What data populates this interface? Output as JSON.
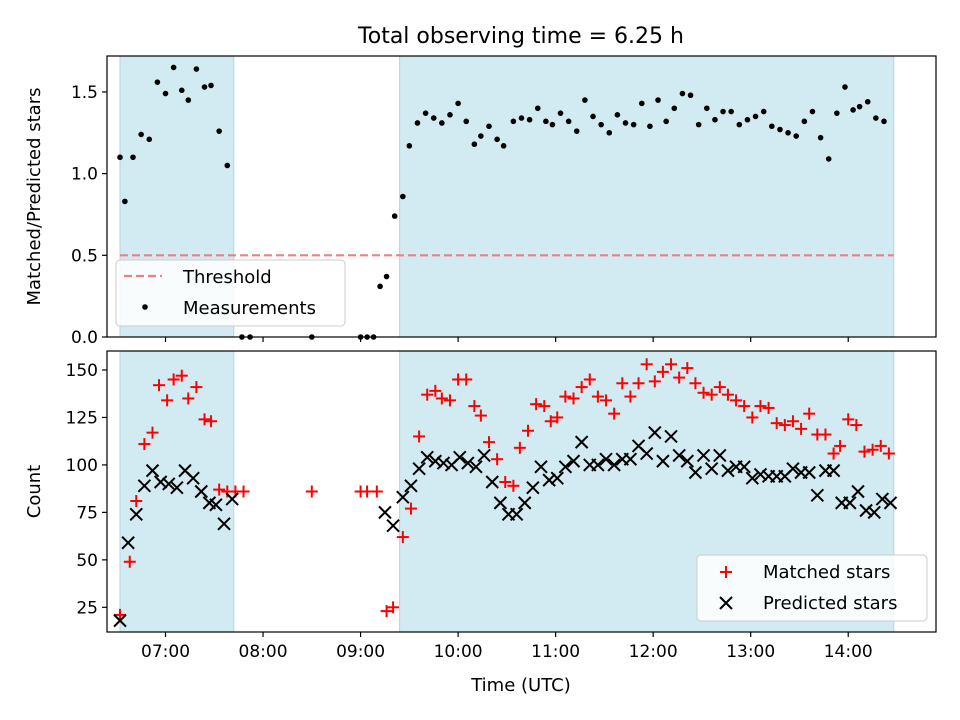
{
  "title": "Total observing time = 6.25 h",
  "colors": {
    "observing_band": "#add8e6",
    "threshold": "#f08080",
    "measurement": "#000000",
    "matched": "#ff0000",
    "predicted": "#000000"
  },
  "chart_data": [
    {
      "type": "scatter",
      "ylabel": "Matched/Predicted stars",
      "xlim": [
        "06:24",
        "14:54"
      ],
      "ylim": [
        0,
        1.72
      ],
      "yticks": [
        "0.0",
        "0.5",
        "1.0",
        "1.5"
      ],
      "observing_windows": [
        [
          "06:32",
          "07:42"
        ],
        [
          "09:24",
          "14:28"
        ]
      ],
      "threshold": {
        "name": "Threshold",
        "y": 0.5,
        "x_range": [
          "06:32",
          "14:28"
        ]
      },
      "legend": {
        "position": "lower-left",
        "entries": [
          "Threshold",
          "Measurements"
        ]
      },
      "series": [
        {
          "name": "Measurements",
          "marker": "dot",
          "points": [
            [
              "06:32",
              1.1
            ],
            [
              "06:35",
              0.83
            ],
            [
              "06:40",
              1.1
            ],
            [
              "06:45",
              1.24
            ],
            [
              "06:50",
              1.21
            ],
            [
              "06:55",
              1.56
            ],
            [
              "07:00",
              1.49
            ],
            [
              "07:05",
              1.65
            ],
            [
              "07:10",
              1.51
            ],
            [
              "07:14",
              1.45
            ],
            [
              "07:19",
              1.64
            ],
            [
              "07:24",
              1.53
            ],
            [
              "07:28",
              1.54
            ],
            [
              "07:33",
              1.26
            ],
            [
              "07:38",
              1.05
            ],
            [
              "07:47",
              0.0
            ],
            [
              "07:52",
              0.0
            ],
            [
              "08:30",
              0.0
            ],
            [
              "09:00",
              0.0
            ],
            [
              "09:04",
              0.0
            ],
            [
              "09:08",
              0.0
            ],
            [
              "09:12",
              0.31
            ],
            [
              "09:16",
              0.37
            ],
            [
              "09:21",
              0.74
            ],
            [
              "09:26",
              0.86
            ],
            [
              "09:30",
              1.17
            ],
            [
              "09:35",
              1.31
            ],
            [
              "09:40",
              1.37
            ],
            [
              "09:45",
              1.34
            ],
            [
              "09:50",
              1.31
            ],
            [
              "09:55",
              1.36
            ],
            [
              "10:00",
              1.43
            ],
            [
              "10:05",
              1.32
            ],
            [
              "10:10",
              1.18
            ],
            [
              "10:14",
              1.23
            ],
            [
              "10:19",
              1.29
            ],
            [
              "10:24",
              1.21
            ],
            [
              "10:28",
              1.17
            ],
            [
              "10:34",
              1.32
            ],
            [
              "10:39",
              1.34
            ],
            [
              "10:44",
              1.33
            ],
            [
              "10:49",
              1.4
            ],
            [
              "10:54",
              1.32
            ],
            [
              "10:58",
              1.3
            ],
            [
              "11:03",
              1.37
            ],
            [
              "11:08",
              1.32
            ],
            [
              "11:13",
              1.26
            ],
            [
              "11:18",
              1.45
            ],
            [
              "11:23",
              1.35
            ],
            [
              "11:28",
              1.3
            ],
            [
              "11:33",
              1.25
            ],
            [
              "11:38",
              1.36
            ],
            [
              "11:43",
              1.31
            ],
            [
              "11:48",
              1.3
            ],
            [
              "11:53",
              1.43
            ],
            [
              "11:58",
              1.29
            ],
            [
              "12:03",
              1.45
            ],
            [
              "12:08",
              1.32
            ],
            [
              "12:13",
              1.4
            ],
            [
              "12:18",
              1.49
            ],
            [
              "12:23",
              1.48
            ],
            [
              "12:28",
              1.3
            ],
            [
              "12:33",
              1.4
            ],
            [
              "12:38",
              1.33
            ],
            [
              "12:43",
              1.38
            ],
            [
              "12:48",
              1.38
            ],
            [
              "12:53",
              1.3
            ],
            [
              "12:58",
              1.33
            ],
            [
              "13:03",
              1.35
            ],
            [
              "13:08",
              1.38
            ],
            [
              "13:13",
              1.29
            ],
            [
              "13:18",
              1.27
            ],
            [
              "13:23",
              1.25
            ],
            [
              "13:28",
              1.23
            ],
            [
              "13:33",
              1.32
            ],
            [
              "13:38",
              1.38
            ],
            [
              "13:43",
              1.22
            ],
            [
              "13:48",
              1.09
            ],
            [
              "13:53",
              1.37
            ],
            [
              "13:58",
              1.53
            ],
            [
              "14:03",
              1.39
            ],
            [
              "14:07",
              1.41
            ],
            [
              "14:12",
              1.44
            ],
            [
              "14:17",
              1.34
            ],
            [
              "14:22",
              1.32
            ]
          ]
        }
      ]
    },
    {
      "type": "scatter",
      "xlabel": "Time (UTC)",
      "ylabel": "Count",
      "xlim": [
        "06:24",
        "14:54"
      ],
      "ylim": [
        12,
        160
      ],
      "yticks": [
        "25",
        "50",
        "75",
        "100",
        "125",
        "150"
      ],
      "xticks": [
        "07:00",
        "08:00",
        "09:00",
        "10:00",
        "11:00",
        "12:00",
        "13:00",
        "14:00"
      ],
      "observing_windows": [
        [
          "06:32",
          "07:42"
        ],
        [
          "09:24",
          "14:28"
        ]
      ],
      "legend": {
        "position": "lower-right",
        "entries": [
          "Matched stars",
          "Predicted stars"
        ]
      },
      "series": [
        {
          "name": "Matched stars",
          "marker": "plus",
          "points": [
            [
              "06:32",
              21
            ],
            [
              "06:38",
              49
            ],
            [
              "06:42",
              81
            ],
            [
              "06:47",
              111
            ],
            [
              "06:52",
              117
            ],
            [
              "06:56",
              142
            ],
            [
              "07:01",
              134
            ],
            [
              "07:05",
              145
            ],
            [
              "07:10",
              147
            ],
            [
              "07:14",
              135
            ],
            [
              "07:19",
              141
            ],
            [
              "07:24",
              124
            ],
            [
              "07:28",
              123
            ],
            [
              "07:33",
              87
            ],
            [
              "07:38",
              86
            ],
            [
              "07:43",
              86
            ],
            [
              "07:48",
              86
            ],
            [
              "08:30",
              86
            ],
            [
              "09:00",
              86
            ],
            [
              "09:04",
              86
            ],
            [
              "09:10",
              86
            ],
            [
              "09:16",
              23
            ],
            [
              "09:20",
              25
            ],
            [
              "09:26",
              62
            ],
            [
              "09:31",
              77
            ],
            [
              "09:36",
              115
            ],
            [
              "09:41",
              137
            ],
            [
              "09:46",
              139
            ],
            [
              "09:50",
              135
            ],
            [
              "09:55",
              134
            ],
            [
              "10:00",
              145
            ],
            [
              "10:05",
              145
            ],
            [
              "10:10",
              131
            ],
            [
              "10:14",
              126
            ],
            [
              "10:19",
              112
            ],
            [
              "10:24",
              103
            ],
            [
              "10:29",
              91
            ],
            [
              "10:34",
              89
            ],
            [
              "10:38",
              109
            ],
            [
              "10:43",
              118
            ],
            [
              "10:48",
              132
            ],
            [
              "10:53",
              131
            ],
            [
              "10:57",
              123
            ],
            [
              "11:01",
              125
            ],
            [
              "11:06",
              136
            ],
            [
              "11:11",
              135
            ],
            [
              "11:16",
              141
            ],
            [
              "11:21",
              145
            ],
            [
              "11:26",
              136
            ],
            [
              "11:31",
              134
            ],
            [
              "11:36",
              127
            ],
            [
              "11:41",
              143
            ],
            [
              "11:46",
              136
            ],
            [
              "11:51",
              143
            ],
            [
              "11:56",
              153
            ],
            [
              "12:01",
              144
            ],
            [
              "12:06",
              149
            ],
            [
              "12:11",
              153
            ],
            [
              "12:16",
              146
            ],
            [
              "12:21",
              151
            ],
            [
              "12:26",
              143
            ],
            [
              "12:31",
              138
            ],
            [
              "12:36",
              137
            ],
            [
              "12:41",
              141
            ],
            [
              "12:46",
              137
            ],
            [
              "12:51",
              134
            ],
            [
              "12:56",
              131
            ],
            [
              "13:01",
              125
            ],
            [
              "13:06",
              131
            ],
            [
              "13:11",
              130
            ],
            [
              "13:16",
              122
            ],
            [
              "13:21",
              121
            ],
            [
              "13:26",
              123
            ],
            [
              "13:31",
              119
            ],
            [
              "13:36",
              127
            ],
            [
              "13:41",
              116
            ],
            [
              "13:46",
              116
            ],
            [
              "13:51",
              106
            ],
            [
              "13:55",
              110
            ],
            [
              "14:00",
              124
            ],
            [
              "14:05",
              121
            ],
            [
              "14:10",
              107
            ],
            [
              "14:15",
              108
            ],
            [
              "14:20",
              110
            ],
            [
              "14:25",
              106
            ]
          ]
        },
        {
          "name": "Predicted stars",
          "marker": "x",
          "points": [
            [
              "06:32",
              18
            ],
            [
              "06:37",
              59
            ],
            [
              "06:42",
              74
            ],
            [
              "06:47",
              89
            ],
            [
              "06:52",
              97
            ],
            [
              "06:57",
              91
            ],
            [
              "07:02",
              90
            ],
            [
              "07:07",
              88
            ],
            [
              "07:12",
              97
            ],
            [
              "07:17",
              93
            ],
            [
              "07:22",
              86
            ],
            [
              "07:27",
              80
            ],
            [
              "07:31",
              79
            ],
            [
              "07:36",
              69
            ],
            [
              "07:41",
              82
            ],
            [
              "09:15",
              75
            ],
            [
              "09:20",
              68
            ],
            [
              "09:26",
              83
            ],
            [
              "09:31",
              89
            ],
            [
              "09:36",
              98
            ],
            [
              "09:41",
              104
            ],
            [
              "09:46",
              102
            ],
            [
              "09:51",
              101
            ],
            [
              "09:56",
              100
            ],
            [
              "10:01",
              104
            ],
            [
              "10:06",
              101
            ],
            [
              "10:11",
              99
            ],
            [
              "10:16",
              105
            ],
            [
              "10:21",
              91
            ],
            [
              "10:26",
              80
            ],
            [
              "10:31",
              74
            ],
            [
              "10:36",
              74
            ],
            [
              "10:41",
              80
            ],
            [
              "10:46",
              88
            ],
            [
              "10:51",
              99
            ],
            [
              "10:56",
              92
            ],
            [
              "11:01",
              93
            ],
            [
              "11:06",
              99
            ],
            [
              "11:11",
              102
            ],
            [
              "11:16",
              112
            ],
            [
              "11:21",
              100
            ],
            [
              "11:26",
              100
            ],
            [
              "11:31",
              103
            ],
            [
              "11:36",
              100
            ],
            [
              "11:41",
              103
            ],
            [
              "11:46",
              103
            ],
            [
              "11:51",
              110
            ],
            [
              "11:56",
              106
            ],
            [
              "12:01",
              117
            ],
            [
              "12:06",
              102
            ],
            [
              "12:11",
              115
            ],
            [
              "12:16",
              105
            ],
            [
              "12:21",
              102
            ],
            [
              "12:26",
              96
            ],
            [
              "12:31",
              105
            ],
            [
              "12:36",
              98
            ],
            [
              "12:41",
              105
            ],
            [
              "12:46",
              97
            ],
            [
              "12:51",
              99
            ],
            [
              "12:56",
              99
            ],
            [
              "13:01",
              93
            ],
            [
              "13:06",
              95
            ],
            [
              "13:11",
              94
            ],
            [
              "13:16",
              94
            ],
            [
              "13:21",
              94
            ],
            [
              "13:26",
              98
            ],
            [
              "13:31",
              96
            ],
            [
              "13:36",
              96
            ],
            [
              "13:41",
              84
            ],
            [
              "13:46",
              97
            ],
            [
              "13:51",
              97
            ],
            [
              "13:56",
              80
            ],
            [
              "14:01",
              80
            ],
            [
              "14:06",
              86
            ],
            [
              "14:11",
              76
            ],
            [
              "14:16",
              75
            ],
            [
              "14:21",
              82
            ],
            [
              "14:26",
              80
            ]
          ]
        }
      ]
    }
  ]
}
